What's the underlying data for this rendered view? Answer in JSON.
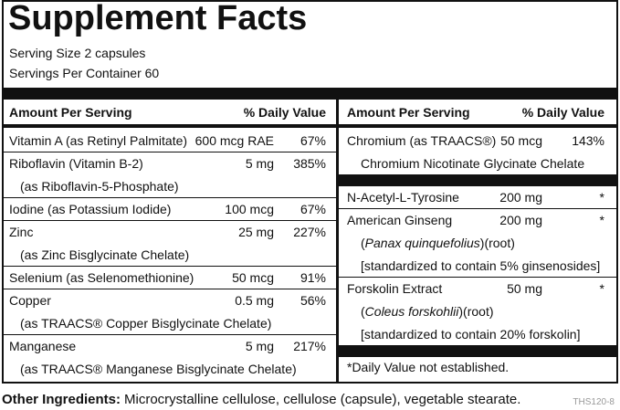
{
  "title": "Supplement Facts",
  "serving_size": "Serving Size 2 capsules",
  "servings_per_container": "Servings Per Container 60",
  "columns": [
    {
      "header": {
        "amount": "Amount Per Serving",
        "daily_value": "% Daily Value"
      },
      "rows": [
        {
          "name": "Vitamin A (as Retinyl Palmitate)",
          "amount": "600 mcg RAE",
          "daily_value": "67%"
        },
        {
          "name": "Riboflavin (Vitamin B-2)",
          "amount": "5 mg",
          "daily_value": "385%",
          "details": [
            "(as Riboflavin-5-Phosphate)"
          ]
        },
        {
          "name": "Iodine (as Potassium Iodide)",
          "amount": "100 mcg",
          "daily_value": "67%"
        },
        {
          "name": "Zinc",
          "amount": "25 mg",
          "daily_value": "227%",
          "details": [
            "(as Zinc Bisglycinate Chelate)"
          ]
        },
        {
          "name": "Selenium (as Selenomethionine)",
          "amount": "50 mcg",
          "daily_value": "91%"
        },
        {
          "name": "Copper",
          "amount": "0.5 mg",
          "daily_value": "56%",
          "details": [
            "(as TRAACS® Copper Bisglycinate Chelate)"
          ]
        },
        {
          "name": "Manganese",
          "amount": "5 mg",
          "daily_value": "217%",
          "details": [
            "(as TRAACS® Manganese Bisglycinate Chelate)"
          ]
        }
      ]
    },
    {
      "header": {
        "amount": "Amount Per Serving",
        "daily_value": "% Daily Value"
      },
      "rows": [
        {
          "name": "Chromium (as TRAACS®)",
          "amount": "50 mcg",
          "daily_value": "143%",
          "details": [
            "Chromium Nicotinate Glycinate Chelate"
          ]
        },
        {
          "name": "N-Acetyl-L-Tyrosine",
          "amount": "200 mg",
          "daily_value": "*"
        },
        {
          "name": "American Ginseng",
          "amount": "200 mg",
          "daily_value": "*",
          "details": [
            {
              "before": "(",
              "italic": "Panax quinquefolius",
              "after": ")(root)"
            },
            "[standardized to contain 5% ginsenosides]"
          ]
        },
        {
          "name": "Forskolin Extract",
          "amount": "50 mg",
          "daily_value": "*",
          "details": [
            {
              "before": "(",
              "italic": "Coleus forskohlii",
              "after": ")(root)"
            },
            "[standardized to contain 20% forskolin]"
          ]
        }
      ],
      "footnote": "*Daily Value not established."
    }
  ],
  "other_ingredients": {
    "label": "Other Ingredients:",
    "text": "Microcrystalline cellulose, cellulose (capsule), vegetable stearate."
  },
  "code": "THS120-8"
}
